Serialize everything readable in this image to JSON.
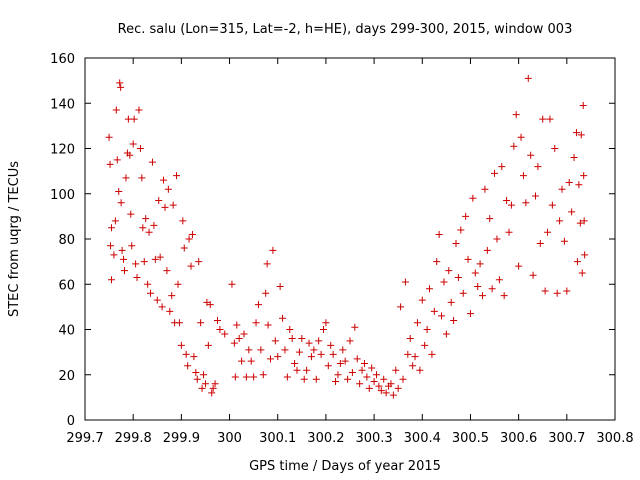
{
  "chart_data": {
    "type": "scatter",
    "title": "Rec. salu (Lon=315, Lat=-2, h=HE), days 299-300, 2015, window 003",
    "xlabel": "GPS time / Days of year 2015",
    "ylabel": "STEC from uqrg / TECUs",
    "xlim": [
      299.7,
      300.8
    ],
    "ylim": [
      0,
      160
    ],
    "xticks": [
      299.7,
      299.8,
      299.9,
      300,
      300.1,
      300.2,
      300.3,
      300.4,
      300.5,
      300.6,
      300.7,
      300.8
    ],
    "xtick_labels": [
      "299.7",
      "299.8",
      "299.9",
      "300",
      "300.1",
      "300.2",
      "300.3",
      "300.4",
      "300.5",
      "300.6",
      "300.7",
      "300.8"
    ],
    "yticks": [
      0,
      20,
      40,
      60,
      80,
      100,
      120,
      140,
      160
    ],
    "ytick_labels": [
      "0",
      "20",
      "40",
      "60",
      "80",
      "100",
      "120",
      "140",
      "160"
    ],
    "grid": false,
    "marker": "plus",
    "color": "#cc0000",
    "points": [
      [
        299.75,
        125
      ],
      [
        299.752,
        113
      ],
      [
        299.755,
        85
      ],
      [
        299.753,
        77
      ],
      [
        299.755,
        62
      ],
      [
        299.76,
        73
      ],
      [
        299.763,
        88
      ],
      [
        299.765,
        137
      ],
      [
        299.767,
        115
      ],
      [
        299.77,
        101
      ],
      [
        299.772,
        149
      ],
      [
        299.774,
        147
      ],
      [
        299.775,
        96
      ],
      [
        299.777,
        75
      ],
      [
        299.78,
        71
      ],
      [
        299.782,
        66
      ],
      [
        299.785,
        107
      ],
      [
        299.788,
        118
      ],
      [
        299.79,
        133
      ],
      [
        299.793,
        117
      ],
      [
        299.795,
        91
      ],
      [
        299.797,
        77
      ],
      [
        299.8,
        122
      ],
      [
        299.802,
        133
      ],
      [
        299.805,
        69
      ],
      [
        299.808,
        63
      ],
      [
        299.812,
        137
      ],
      [
        299.815,
        120
      ],
      [
        299.818,
        107
      ],
      [
        299.82,
        85
      ],
      [
        299.823,
        70
      ],
      [
        299.826,
        89
      ],
      [
        299.83,
        60
      ],
      [
        299.833,
        83
      ],
      [
        299.836,
        56
      ],
      [
        299.84,
        114
      ],
      [
        299.843,
        86
      ],
      [
        299.846,
        71
      ],
      [
        299.85,
        53
      ],
      [
        299.853,
        97
      ],
      [
        299.856,
        72
      ],
      [
        299.86,
        50
      ],
      [
        299.863,
        106
      ],
      [
        299.866,
        94
      ],
      [
        299.87,
        66
      ],
      [
        299.873,
        102
      ],
      [
        299.876,
        48
      ],
      [
        299.88,
        55
      ],
      [
        299.883,
        95
      ],
      [
        299.886,
        43
      ],
      [
        299.89,
        108
      ],
      [
        299.893,
        60
      ],
      [
        299.896,
        43
      ],
      [
        299.9,
        33
      ],
      [
        299.903,
        88
      ],
      [
        299.906,
        76
      ],
      [
        299.91,
        29
      ],
      [
        299.913,
        24
      ],
      [
        299.916,
        80
      ],
      [
        299.92,
        68
      ],
      [
        299.923,
        82
      ],
      [
        299.926,
        28
      ],
      [
        299.93,
        21
      ],
      [
        299.933,
        18
      ],
      [
        299.936,
        70
      ],
      [
        299.94,
        43
      ],
      [
        299.943,
        14
      ],
      [
        299.946,
        20
      ],
      [
        299.95,
        16
      ],
      [
        299.953,
        52
      ],
      [
        299.956,
        33
      ],
      [
        299.96,
        51
      ],
      [
        299.963,
        12
      ],
      [
        299.966,
        14
      ],
      [
        299.97,
        16
      ],
      [
        299.975,
        44
      ],
      [
        299.98,
        40
      ],
      [
        299.99,
        38
      ],
      [
        300.005,
        60
      ],
      [
        300.01,
        34
      ],
      [
        300.012,
        19
      ],
      [
        300.015,
        42
      ],
      [
        300.02,
        36
      ],
      [
        300.025,
        26
      ],
      [
        300.03,
        38
      ],
      [
        300.035,
        19
      ],
      [
        300.04,
        31
      ],
      [
        300.045,
        26
      ],
      [
        300.05,
        19
      ],
      [
        300.055,
        43
      ],
      [
        300.06,
        51
      ],
      [
        300.065,
        31
      ],
      [
        300.07,
        20
      ],
      [
        300.075,
        56
      ],
      [
        300.078,
        69
      ],
      [
        300.08,
        42
      ],
      [
        300.085,
        27
      ],
      [
        300.09,
        75
      ],
      [
        300.095,
        35
      ],
      [
        300.1,
        28
      ],
      [
        300.105,
        59
      ],
      [
        300.11,
        45
      ],
      [
        300.115,
        31
      ],
      [
        300.12,
        19
      ],
      [
        300.125,
        40
      ],
      [
        300.13,
        36
      ],
      [
        300.135,
        25
      ],
      [
        300.14,
        22
      ],
      [
        300.145,
        30
      ],
      [
        300.15,
        36
      ],
      [
        300.155,
        18
      ],
      [
        300.16,
        22
      ],
      [
        300.165,
        34
      ],
      [
        300.17,
        28
      ],
      [
        300.175,
        31
      ],
      [
        300.18,
        18
      ],
      [
        300.185,
        35
      ],
      [
        300.19,
        29
      ],
      [
        300.195,
        40
      ],
      [
        300.2,
        43
      ],
      [
        300.205,
        24
      ],
      [
        300.21,
        33
      ],
      [
        300.215,
        29
      ],
      [
        300.22,
        17
      ],
      [
        300.225,
        20
      ],
      [
        300.23,
        25
      ],
      [
        300.235,
        31
      ],
      [
        300.24,
        26
      ],
      [
        300.245,
        18
      ],
      [
        300.25,
        35
      ],
      [
        300.255,
        21
      ],
      [
        300.26,
        41
      ],
      [
        300.265,
        27
      ],
      [
        300.27,
        16
      ],
      [
        300.275,
        22
      ],
      [
        300.28,
        25
      ],
      [
        300.285,
        19
      ],
      [
        300.29,
        14
      ],
      [
        300.295,
        23
      ],
      [
        300.3,
        17
      ],
      [
        300.305,
        20
      ],
      [
        300.31,
        15
      ],
      [
        300.315,
        13
      ],
      [
        300.32,
        18
      ],
      [
        300.325,
        12
      ],
      [
        300.33,
        15
      ],
      [
        300.335,
        16
      ],
      [
        300.34,
        11
      ],
      [
        300.345,
        22
      ],
      [
        300.35,
        14
      ],
      [
        300.355,
        50
      ],
      [
        300.36,
        18
      ],
      [
        300.365,
        61
      ],
      [
        300.37,
        29
      ],
      [
        300.375,
        36
      ],
      [
        300.38,
        24
      ],
      [
        300.385,
        28
      ],
      [
        300.39,
        43
      ],
      [
        300.395,
        22
      ],
      [
        300.4,
        53
      ],
      [
        300.405,
        33
      ],
      [
        300.41,
        40
      ],
      [
        300.415,
        58
      ],
      [
        300.42,
        29
      ],
      [
        300.425,
        48
      ],
      [
        300.43,
        70
      ],
      [
        300.435,
        82
      ],
      [
        300.44,
        46
      ],
      [
        300.445,
        61
      ],
      [
        300.45,
        38
      ],
      [
        300.455,
        66
      ],
      [
        300.46,
        52
      ],
      [
        300.465,
        44
      ],
      [
        300.47,
        78
      ],
      [
        300.475,
        63
      ],
      [
        300.48,
        84
      ],
      [
        300.485,
        56
      ],
      [
        300.49,
        90
      ],
      [
        300.495,
        71
      ],
      [
        300.5,
        47
      ],
      [
        300.505,
        98
      ],
      [
        300.51,
        65
      ],
      [
        300.515,
        59
      ],
      [
        300.52,
        69
      ],
      [
        300.525,
        55
      ],
      [
        300.53,
        102
      ],
      [
        300.535,
        75
      ],
      [
        300.54,
        89
      ],
      [
        300.545,
        58
      ],
      [
        300.55,
        109
      ],
      [
        300.555,
        80
      ],
      [
        300.56,
        62
      ],
      [
        300.565,
        112
      ],
      [
        300.57,
        55
      ],
      [
        300.575,
        97
      ],
      [
        300.58,
        83
      ],
      [
        300.585,
        95
      ],
      [
        300.59,
        121
      ],
      [
        300.595,
        135
      ],
      [
        300.6,
        68
      ],
      [
        300.605,
        125
      ],
      [
        300.61,
        108
      ],
      [
        300.615,
        96
      ],
      [
        300.62,
        151
      ],
      [
        300.625,
        117
      ],
      [
        300.63,
        64
      ],
      [
        300.635,
        99
      ],
      [
        300.64,
        112
      ],
      [
        300.645,
        78
      ],
      [
        300.65,
        133
      ],
      [
        300.655,
        57
      ],
      [
        300.66,
        83
      ],
      [
        300.665,
        133
      ],
      [
        300.67,
        95
      ],
      [
        300.675,
        120
      ],
      [
        300.68,
        56
      ],
      [
        300.685,
        88
      ],
      [
        300.69,
        102
      ],
      [
        300.695,
        79
      ],
      [
        300.7,
        57
      ],
      [
        300.705,
        105
      ],
      [
        300.71,
        92
      ],
      [
        300.715,
        116
      ],
      [
        300.72,
        127
      ],
      [
        300.722,
        70
      ],
      [
        300.725,
        104
      ],
      [
        300.728,
        87
      ],
      [
        300.73,
        126
      ],
      [
        300.732,
        65
      ],
      [
        300.734,
        139
      ],
      [
        300.735,
        108
      ],
      [
        300.736,
        88
      ],
      [
        300.737,
        73
      ]
    ]
  }
}
